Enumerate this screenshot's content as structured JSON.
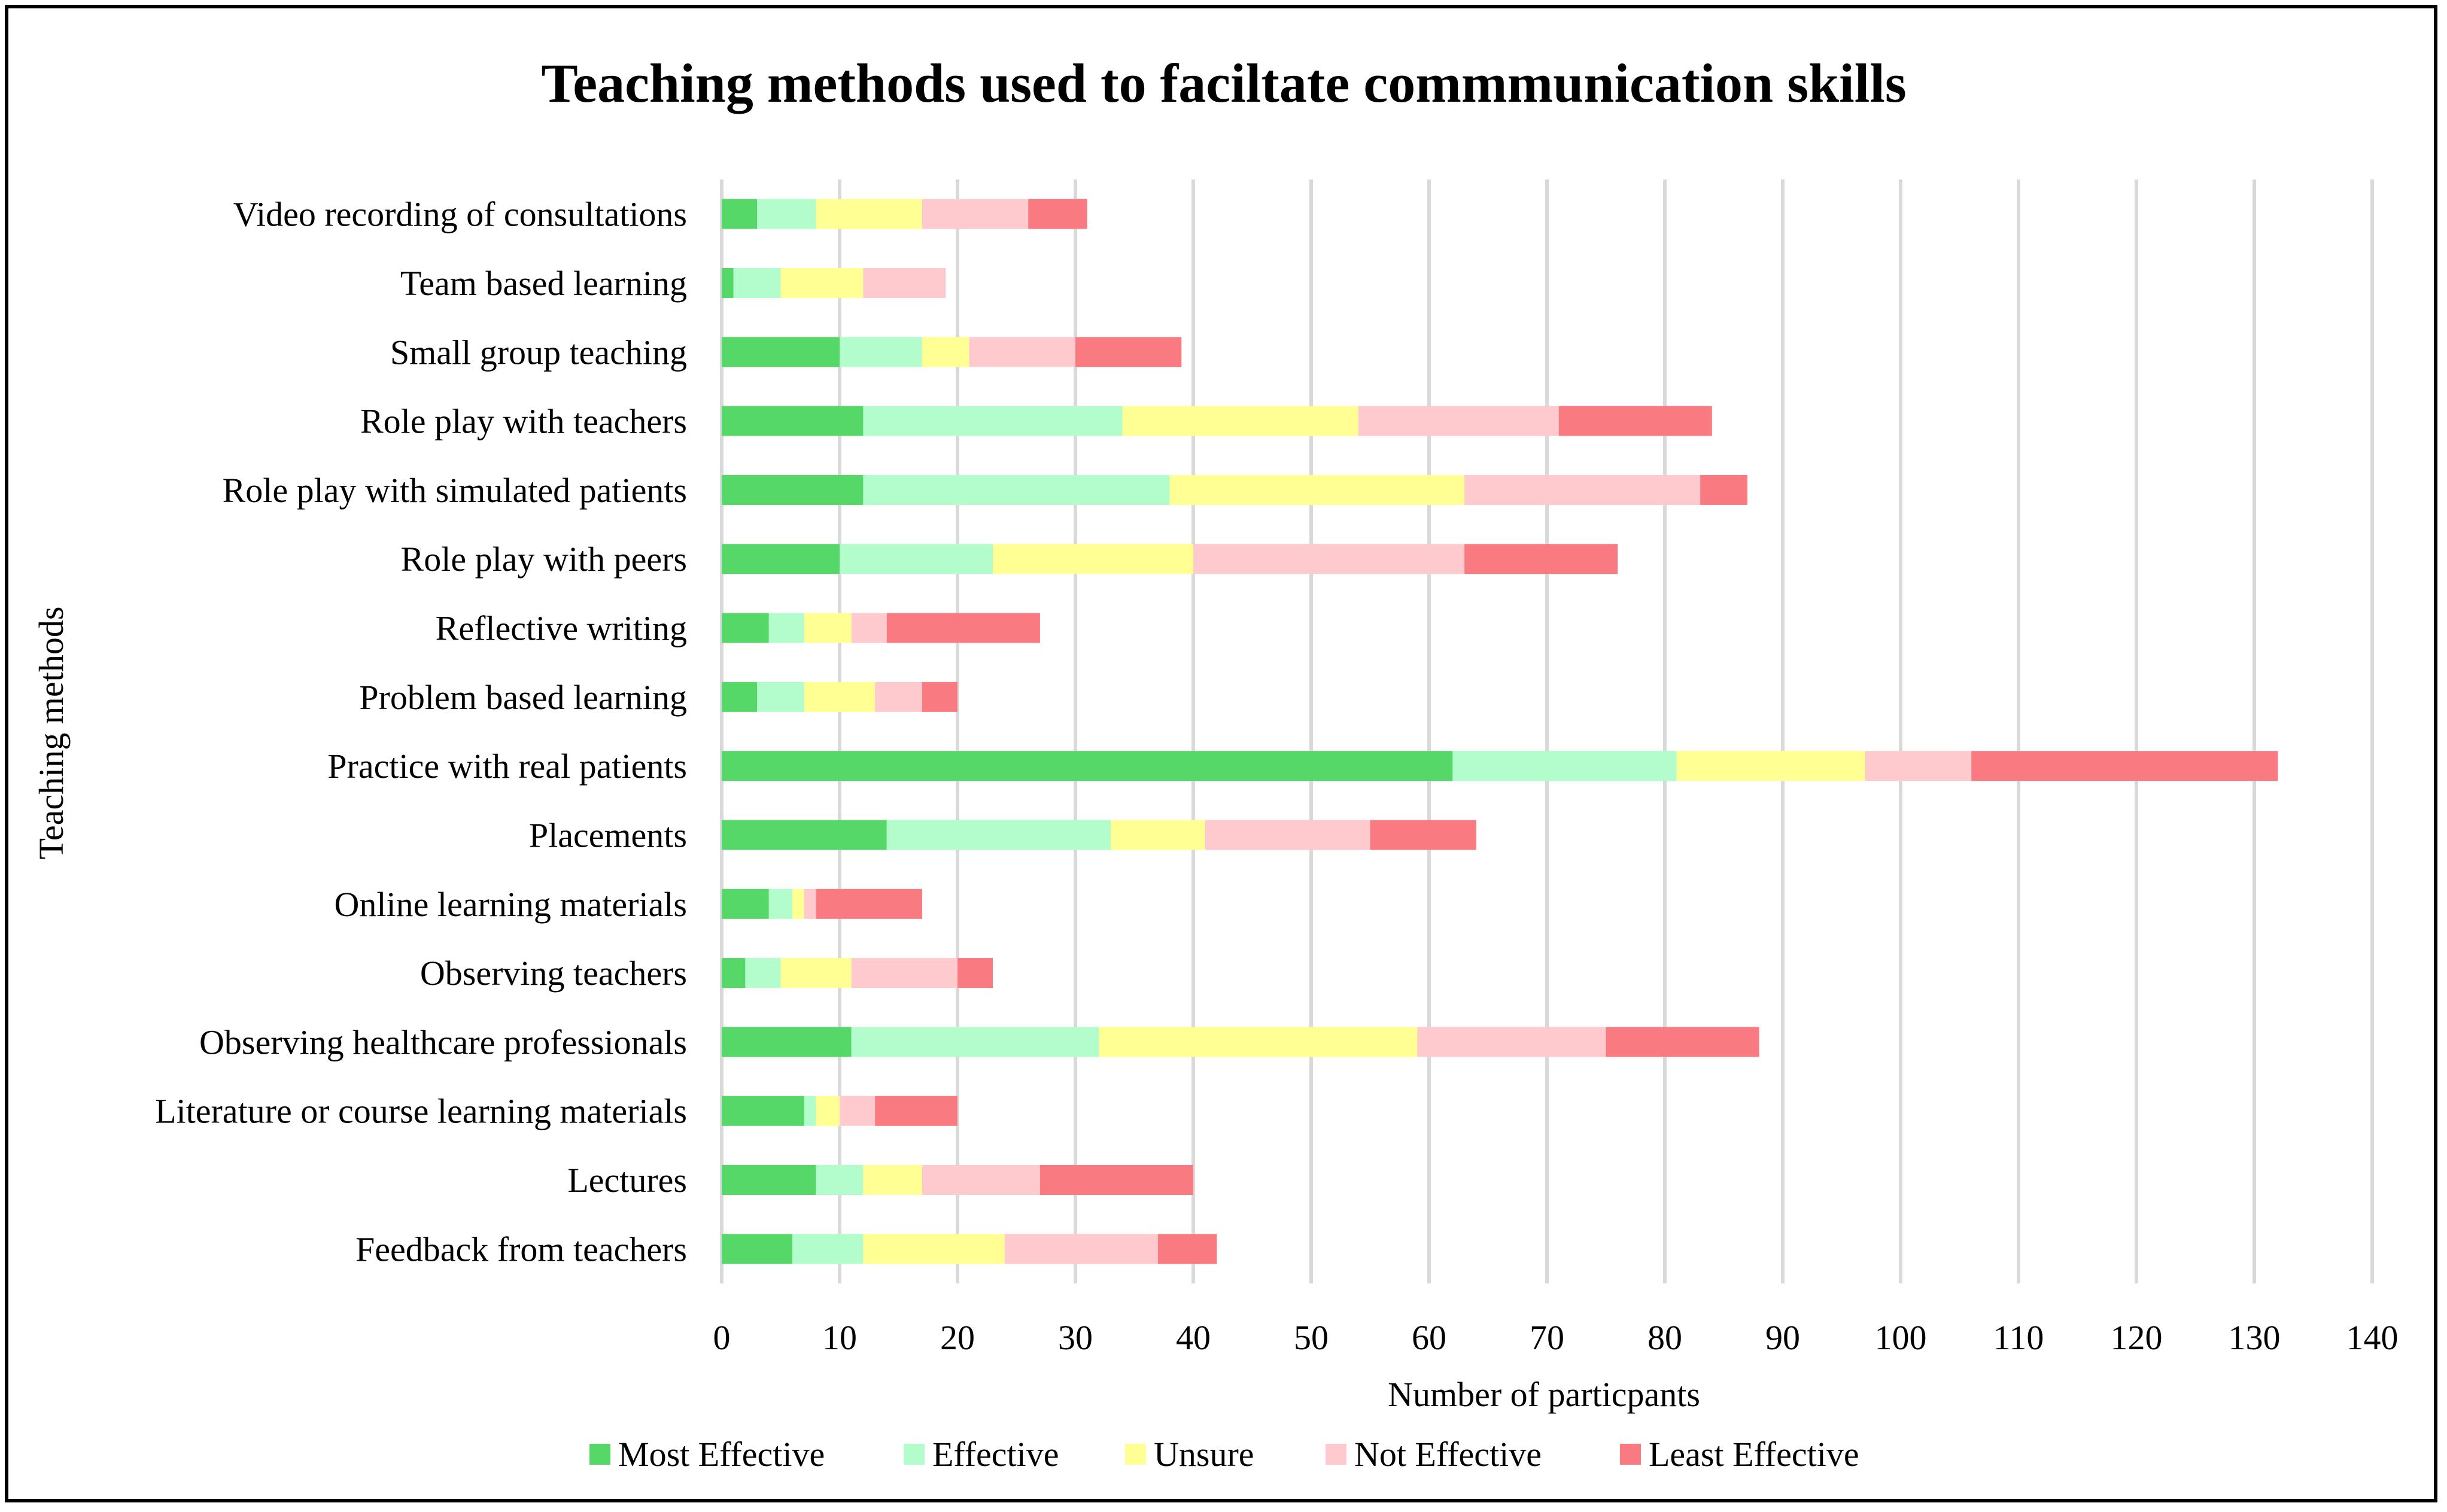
{
  "chart_data": {
    "type": "bar",
    "orientation": "horizontal",
    "stacked": true,
    "title": "Teaching methods used to faciltate commmunication skills",
    "xlabel": "Number of particpants",
    "ylabel": "Teaching methods",
    "xlim": [
      0,
      140
    ],
    "xticks": [
      0,
      10,
      20,
      30,
      40,
      50,
      60,
      70,
      80,
      90,
      100,
      110,
      120,
      130,
      140
    ],
    "grid": "vertical",
    "legend_position": "bottom",
    "categories": [
      "Video recording of consultations",
      "Team based learning",
      "Small group teaching",
      "Role play with teachers",
      "Role play with simulated patients",
      "Role play with peers",
      "Reflective writing",
      "Problem based learning",
      "Practice with real patients",
      "Placements",
      "Online learning materials",
      "Observing teachers",
      "Observing healthcare professionals",
      "Literature or course learning materials",
      "Lectures",
      "Feedback from teachers"
    ],
    "series": [
      {
        "name": "Most Effective",
        "color": "#55d867",
        "values": [
          3,
          1,
          10,
          12,
          12,
          10,
          4,
          3,
          62,
          14,
          4,
          2,
          11,
          7,
          8,
          6
        ]
      },
      {
        "name": "Effective",
        "color": "#b3fdcd",
        "values": [
          5,
          4,
          7,
          22,
          26,
          13,
          3,
          4,
          19,
          19,
          2,
          3,
          21,
          1,
          4,
          6
        ]
      },
      {
        "name": "Unsure",
        "color": "#ffff94",
        "values": [
          9,
          7,
          4,
          20,
          25,
          17,
          4,
          6,
          16,
          8,
          1,
          6,
          27,
          2,
          5,
          12
        ]
      },
      {
        "name": "Not Effective",
        "color": "#ffcacd",
        "values": [
          9,
          7,
          9,
          17,
          20,
          23,
          3,
          4,
          9,
          14,
          1,
          9,
          16,
          3,
          10,
          13
        ]
      },
      {
        "name": "Least Effective",
        "color": "#f97a80",
        "values": [
          5,
          0,
          9,
          13,
          4,
          13,
          13,
          3,
          26,
          9,
          9,
          3,
          13,
          7,
          13,
          5
        ]
      }
    ]
  }
}
